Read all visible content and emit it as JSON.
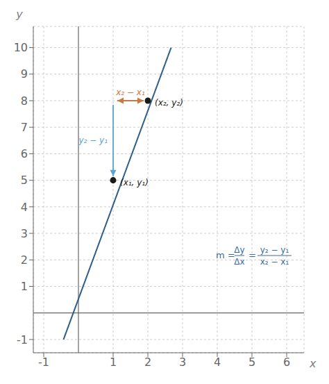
{
  "chart_data": {
    "type": "scatter",
    "series": [
      {
        "type": "line",
        "x": [
          -0.43,
          2.67
        ],
        "values": [
          -1,
          10
        ],
        "color": "#2e5f8a"
      },
      {
        "type": "scatter",
        "x": [
          1,
          2
        ],
        "values": [
          5,
          8
        ],
        "color": "#1a1a1a",
        "marker": "circle"
      }
    ],
    "xlim": [
      -1.3,
      6.5
    ],
    "ylim": [
      -1.5,
      10.8
    ],
    "xticks": [
      -1,
      1,
      2,
      3,
      4,
      5,
      6
    ],
    "yticks": [
      -1,
      1,
      2,
      3,
      4,
      5,
      6,
      7,
      8,
      9,
      10
    ],
    "xlabel": "x",
    "ylabel": "y",
    "grid": true,
    "annotations": [
      {
        "text": "(x₁, y₁)",
        "x": 1,
        "y": 5,
        "color": "#1a1a1a"
      },
      {
        "text": "(x₂, y₂)",
        "x": 2,
        "y": 8,
        "color": "#1a1a1a"
      },
      {
        "text": "y₂ − y₁",
        "x": [
          1,
          1
        ],
        "y": [
          8,
          5
        ],
        "color": "#5ba3d0",
        "line_style": "arrow"
      },
      {
        "text": "x₂ − x₁",
        "x": [
          1,
          2
        ],
        "y": [
          8,
          8
        ],
        "color": "#c87941",
        "line_style": "double_arrow"
      },
      {
        "parts": [
          "m =",
          {
            "numerator": "Δy",
            "denominator": "Δx"
          },
          "=",
          {
            "numerator": "y₂ − y₁",
            "denominator": "x₂ − x₁"
          }
        ],
        "color": "#3a6b9e"
      }
    ]
  }
}
